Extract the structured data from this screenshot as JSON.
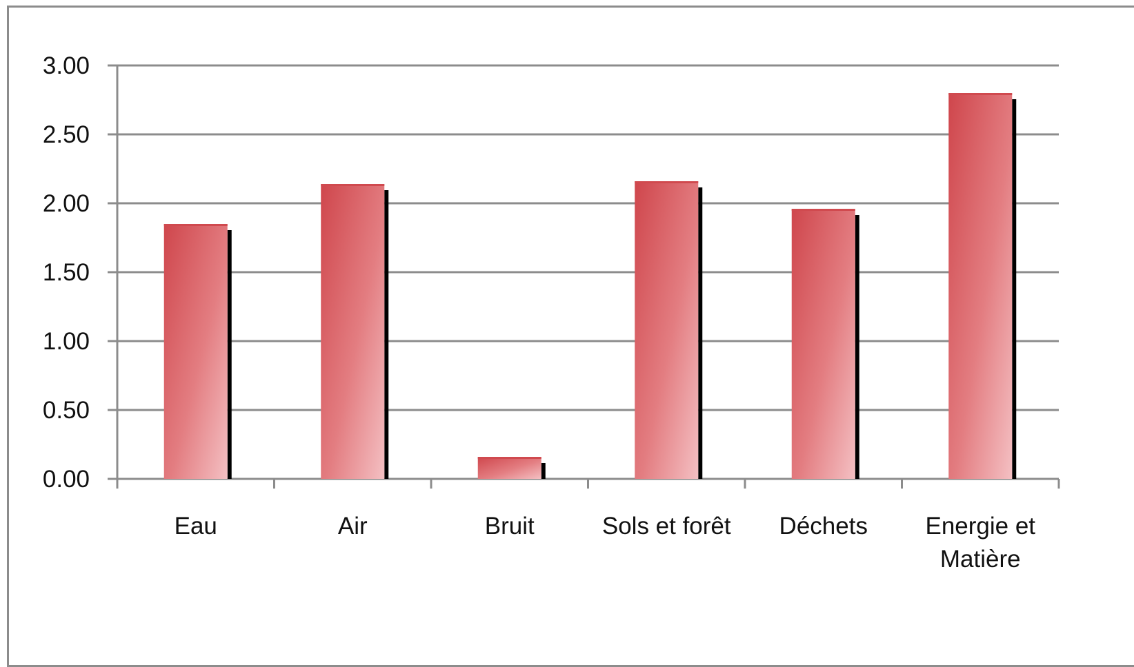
{
  "chart_data": {
    "type": "bar",
    "title": "",
    "xlabel": "",
    "ylabel": "",
    "categories": [
      [
        "Eau"
      ],
      [
        "Air"
      ],
      [
        "Bruit"
      ],
      [
        "Sols et forêt"
      ],
      [
        "Déchets"
      ],
      [
        "Energie et",
        "Matière"
      ]
    ],
    "values": [
      1.85,
      2.14,
      0.16,
      2.16,
      1.96,
      2.8
    ],
    "ylim": [
      0,
      3
    ],
    "yticks": [
      "0.00",
      "0.50",
      "1.00",
      "1.50",
      "2.00",
      "2.50",
      "3.00"
    ],
    "ytick_values": [
      0,
      0.5,
      1,
      1.5,
      2,
      2.5,
      3
    ],
    "reference_line": 1.0,
    "grid": true,
    "colors": {
      "bar_top": "#d04a4f",
      "bar_bottom": "#f2b8bb",
      "bar_shadow": "#000000",
      "reference_line": "#1f4e86",
      "grid": "#8c8c8c",
      "frame": "#8c8c8c"
    }
  }
}
